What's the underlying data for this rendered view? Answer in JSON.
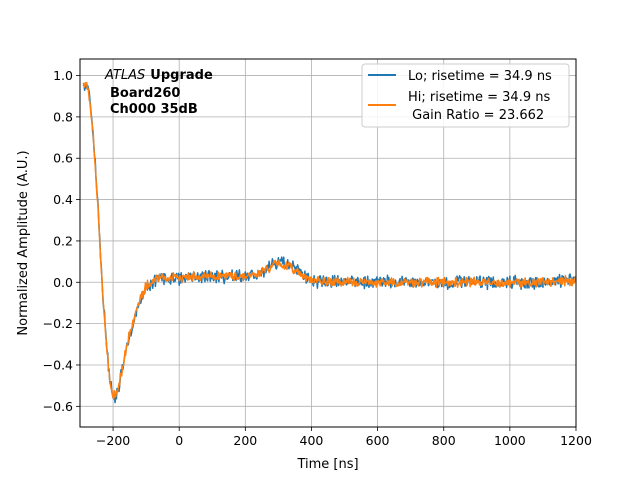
{
  "chart_data": {
    "type": "line",
    "xlabel": "Time [ns]",
    "ylabel": "Normalized Amplitude (A.U.)",
    "xlim": [
      -300,
      1200
    ],
    "ylim": [
      -0.7,
      1.08
    ],
    "xticks": [
      -200,
      0,
      200,
      400,
      600,
      800,
      1000,
      1200
    ],
    "yticks": [
      -0.6,
      -0.4,
      -0.2,
      0.0,
      0.2,
      0.4,
      0.6,
      0.8,
      1.0
    ],
    "xtick_labels": [
      "−200",
      "0",
      "200",
      "400",
      "600",
      "800",
      "1000",
      "1200"
    ],
    "ytick_labels": [
      "−0.6",
      "−0.4",
      "−0.2",
      "0.0",
      "0.2",
      "0.4",
      "0.6",
      "0.8",
      "1.0"
    ],
    "grid": true,
    "legend_position": "top-right",
    "annotation": {
      "line1_italic": "ATLAS",
      "line1_bold": "Upgrade",
      "line2": "Board260",
      "line3": "Ch000 35dB"
    },
    "legend": {
      "line1": "Lo; risetime = 34.9 ns",
      "line2": "Hi; risetime = 34.9 ns",
      "line3": " Gain Ratio = 23.662"
    },
    "series": [
      {
        "name": "Lo; risetime = 34.9 ns",
        "color": "#1f77b4",
        "noise": 0.025,
        "x": [
          -290,
          -280,
          -270,
          -260,
          -250,
          -240,
          -230,
          -220,
          -210,
          -200,
          -190,
          -180,
          -170,
          -160,
          -150,
          -140,
          -130,
          -120,
          -110,
          -100,
          -80,
          -60,
          -40,
          -20,
          0,
          40,
          80,
          120,
          160,
          200,
          240,
          280,
          300,
          320,
          340,
          360,
          380,
          400,
          450,
          500,
          600,
          700,
          800,
          900,
          1000,
          1100,
          1200
        ],
        "y": [
          0.96,
          0.97,
          0.88,
          0.72,
          0.48,
          0.2,
          -0.08,
          -0.3,
          -0.47,
          -0.56,
          -0.55,
          -0.49,
          -0.41,
          -0.33,
          -0.26,
          -0.2,
          -0.14,
          -0.1,
          -0.06,
          -0.03,
          0.0,
          0.02,
          0.02,
          0.02,
          0.02,
          0.03,
          0.03,
          0.03,
          0.03,
          0.03,
          0.04,
          0.08,
          0.1,
          0.09,
          0.07,
          0.05,
          0.03,
          0.01,
          0.0,
          0.0,
          0.0,
          0.0,
          0.0,
          0.0,
          0.0,
          0.0,
          0.01
        ]
      },
      {
        "name": "Hi; risetime = 34.9 ns",
        "color": "#ff7f0e",
        "noise": 0.018,
        "x": [
          -290,
          -280,
          -270,
          -260,
          -250,
          -240,
          -230,
          -220,
          -210,
          -200,
          -190,
          -180,
          -170,
          -160,
          -150,
          -140,
          -130,
          -120,
          -110,
          -100,
          -80,
          -60,
          -40,
          -20,
          0,
          40,
          80,
          120,
          160,
          200,
          240,
          280,
          300,
          320,
          340,
          360,
          380,
          400,
          450,
          500,
          600,
          700,
          800,
          900,
          1000,
          1100,
          1200
        ],
        "y": [
          0.95,
          0.96,
          0.87,
          0.71,
          0.47,
          0.19,
          -0.09,
          -0.31,
          -0.48,
          -0.55,
          -0.54,
          -0.48,
          -0.4,
          -0.32,
          -0.25,
          -0.19,
          -0.13,
          -0.09,
          -0.05,
          -0.02,
          0.0,
          0.02,
          0.02,
          0.02,
          0.02,
          0.03,
          0.03,
          0.03,
          0.03,
          0.03,
          0.04,
          0.08,
          0.09,
          0.08,
          0.07,
          0.05,
          0.03,
          0.01,
          0.0,
          0.0,
          0.0,
          0.0,
          0.0,
          0.0,
          0.0,
          0.0,
          0.01
        ]
      }
    ]
  }
}
